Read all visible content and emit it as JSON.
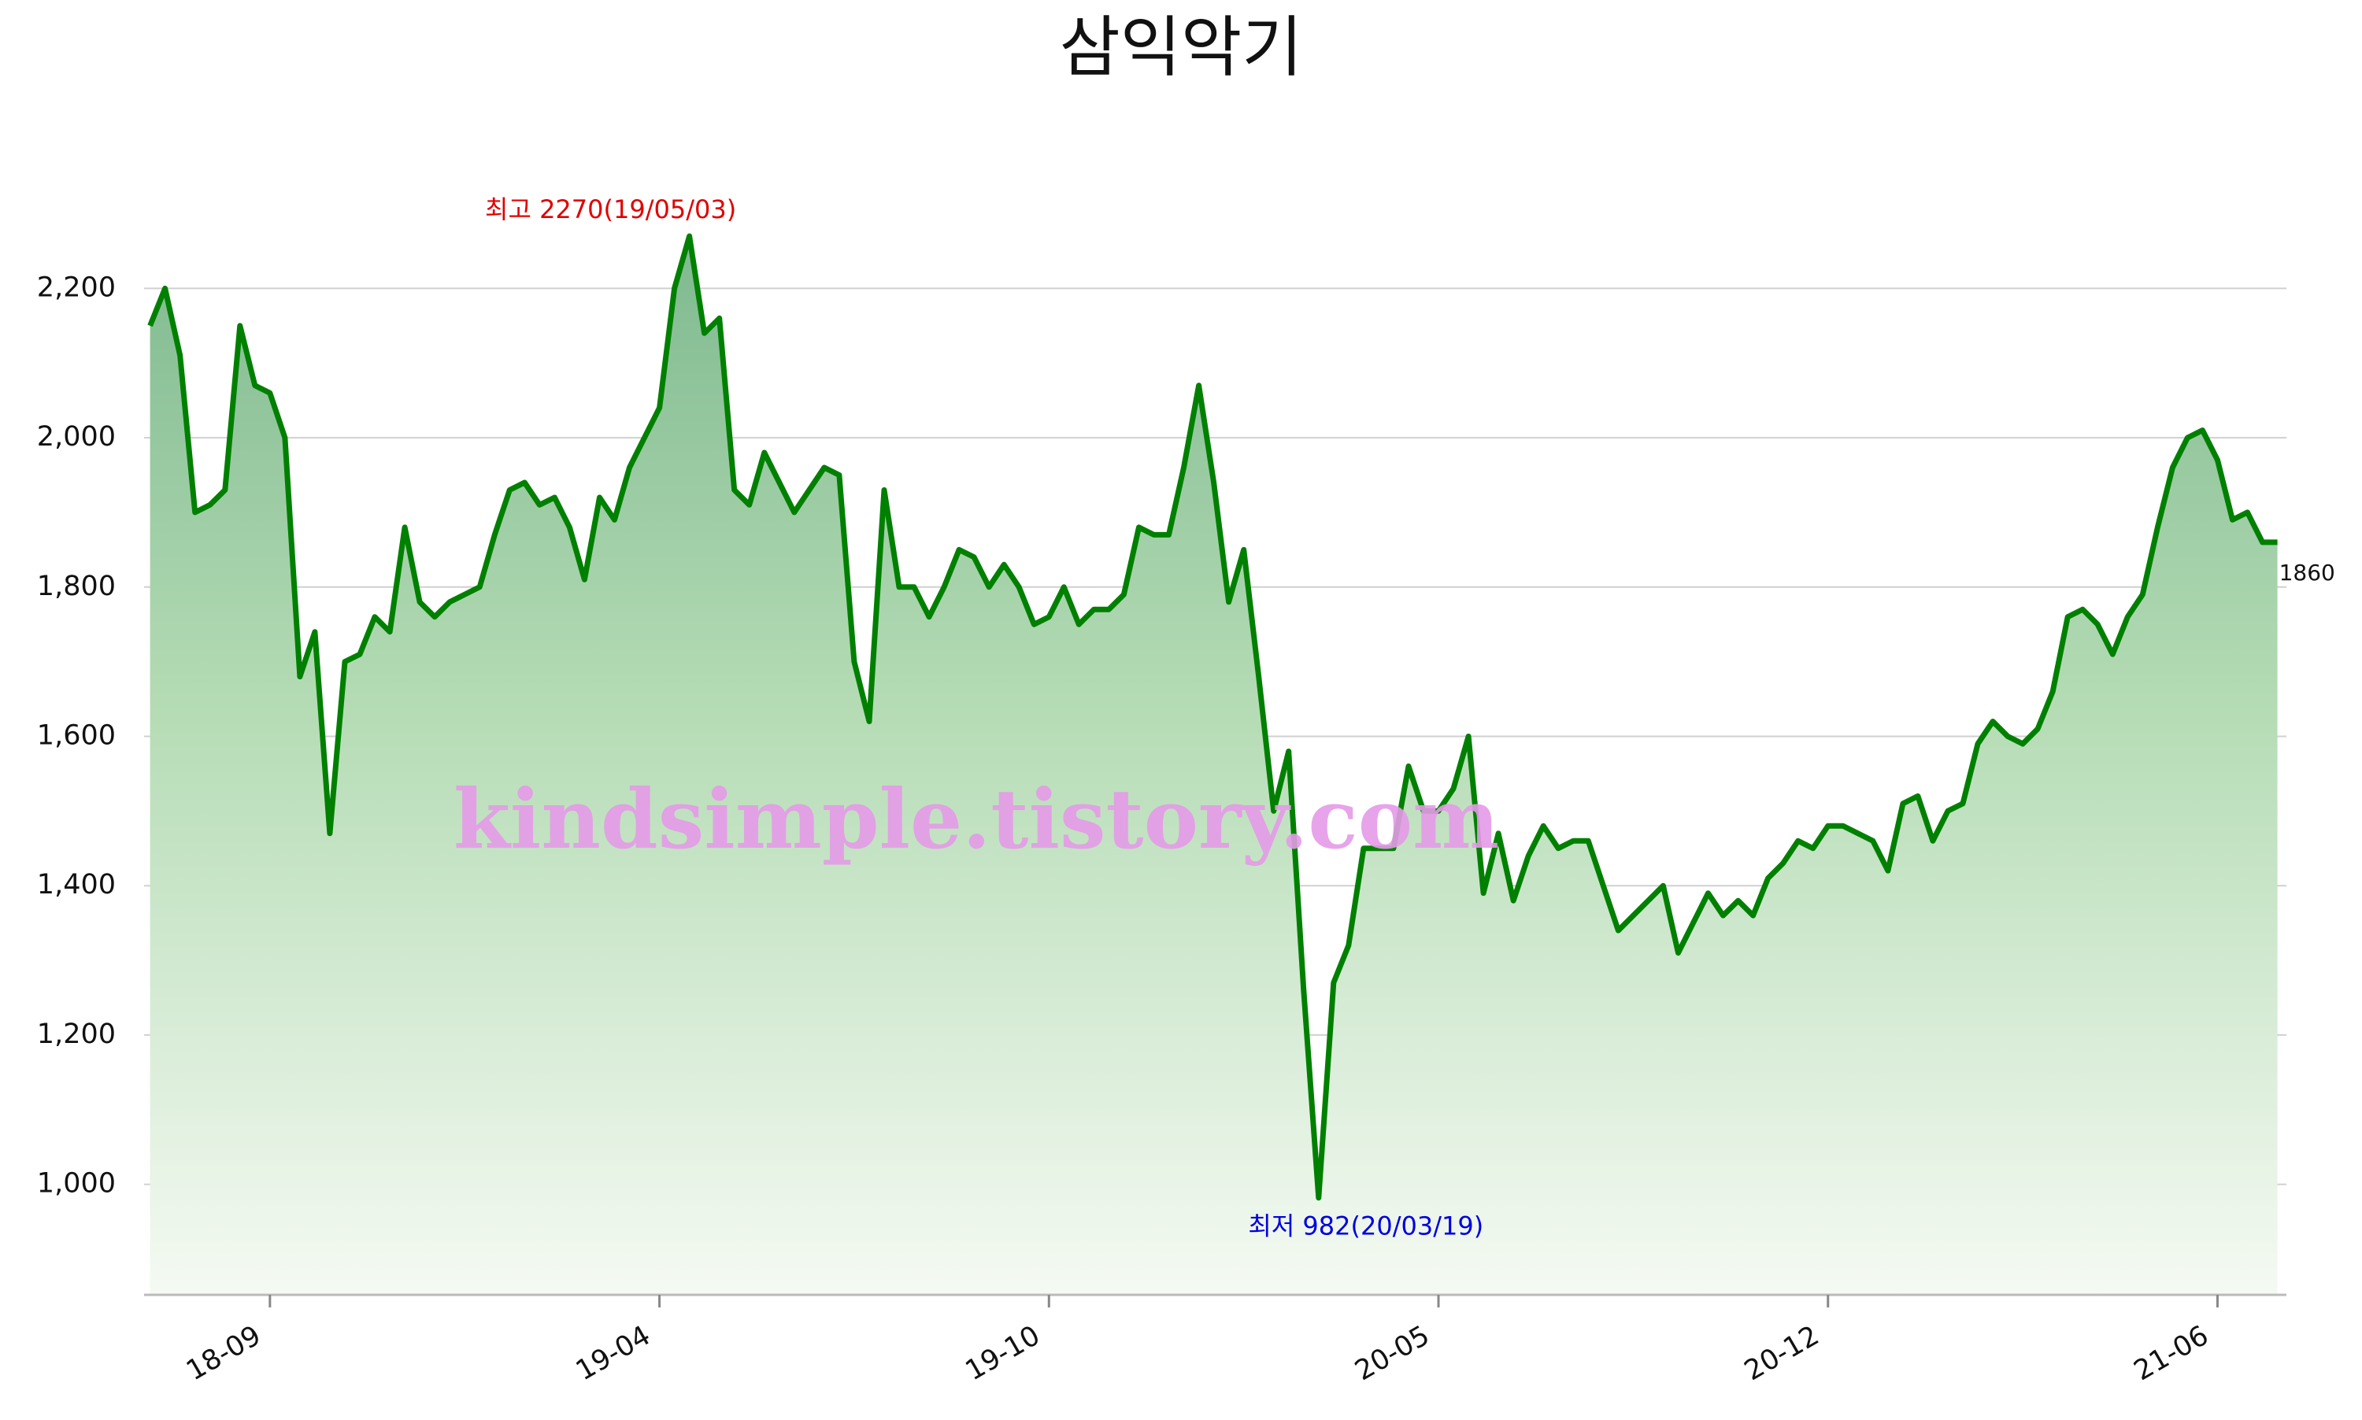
{
  "chart_data": {
    "type": "area-line",
    "title": "삼익악기",
    "watermark": "kindsimple.tistory.com",
    "color": "#008000",
    "grid": true,
    "categories": [
      null,
      null,
      null,
      null,
      null,
      null,
      null,
      null,
      "18-09",
      null,
      null,
      null,
      null,
      null,
      null,
      null,
      null,
      null,
      null,
      null,
      null,
      null,
      null,
      null,
      null,
      null,
      null,
      null,
      null,
      null,
      null,
      null,
      null,
      null,
      "19-04",
      null,
      null,
      null,
      null,
      null,
      null,
      null,
      null,
      null,
      null,
      null,
      null,
      null,
      null,
      null,
      null,
      null,
      null,
      null,
      null,
      null,
      null,
      null,
      null,
      null,
      "19-10",
      null,
      null,
      null,
      null,
      null,
      null,
      null,
      null,
      null,
      null,
      null,
      null,
      null,
      null,
      null,
      null,
      null,
      null,
      null,
      null,
      null,
      null,
      null,
      null,
      null,
      "20-05",
      null,
      null,
      null,
      null,
      null,
      null,
      null,
      null,
      null,
      null,
      null,
      null,
      null,
      null,
      null,
      null,
      null,
      null,
      null,
      null,
      null,
      null,
      null,
      null,
      null,
      "20-12",
      null,
      null,
      null,
      null,
      null,
      null,
      null,
      null,
      null,
      null,
      null,
      null,
      null,
      null,
      null,
      null,
      null,
      null,
      null,
      null,
      null,
      null,
      null,
      null,
      null,
      "21-06",
      null,
      null,
      null,
      null
    ],
    "values": [
      2150,
      2200,
      2110,
      1900,
      1910,
      1930,
      2150,
      2070,
      2060,
      2000,
      1680,
      1740,
      1470,
      1700,
      1710,
      1760,
      1740,
      1880,
      1780,
      1760,
      1780,
      1790,
      1800,
      1870,
      1930,
      1940,
      1910,
      1920,
      1880,
      1810,
      1920,
      1890,
      1960,
      2000,
      2040,
      2200,
      2270,
      2140,
      2160,
      1930,
      1910,
      1980,
      1940,
      1900,
      1930,
      1960,
      1950,
      1700,
      1620,
      1930,
      1800,
      1800,
      1760,
      1800,
      1850,
      1840,
      1800,
      1830,
      1800,
      1750,
      1760,
      1800,
      1750,
      1770,
      1770,
      1790,
      1880,
      1870,
      1870,
      1960,
      2070,
      1940,
      1780,
      1850,
      1680,
      1500,
      1580,
      1260,
      982,
      1270,
      1320,
      1450,
      1450,
      1450,
      1560,
      1500,
      1500,
      1530,
      1600,
      1390,
      1470,
      1380,
      1440,
      1480,
      1450,
      1460,
      1460,
      1400,
      1340,
      1360,
      1380,
      1400,
      1310,
      1350,
      1390,
      1360,
      1380,
      1360,
      1410,
      1430,
      1460,
      1450,
      1480,
      1480,
      1470,
      1460,
      1420,
      1510,
      1520,
      1460,
      1500,
      1510,
      1590,
      1620,
      1600,
      1590,
      1610,
      1660,
      1760,
      1770,
      1750,
      1710,
      1760,
      1790,
      1880,
      1960,
      2000,
      2010,
      1970,
      1890,
      1900,
      1860,
      1860
    ],
    "ylim": [
      852,
      2290
    ],
    "yticks": [
      {
        "value": 1000,
        "label": "1,000"
      },
      {
        "value": 1200,
        "label": "1,200"
      },
      {
        "value": 1400,
        "label": "1,400"
      },
      {
        "value": 1600,
        "label": "1,600"
      },
      {
        "value": 1800,
        "label": "1,800"
      },
      {
        "value": 2000,
        "label": "2,000"
      },
      {
        "value": 2200,
        "label": "2,200"
      }
    ],
    "annotations": {
      "high": "최고 2270(19/05/03)",
      "low": "최저 982(20/03/19)",
      "last": "1860"
    }
  }
}
